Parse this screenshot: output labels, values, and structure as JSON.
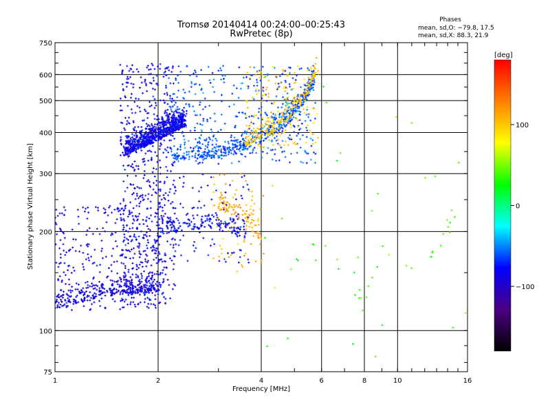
{
  "header": {
    "title_line1": "Tromsø 20140414 00:24:00–00:25:43",
    "title_line2": "RwPretec (8p)",
    "phases_title": "Phases",
    "phases_o": "mean, sd,O: −79.8, 17.5",
    "phases_x": "mean, sd,X:  88.3, 21.9"
  },
  "colorbar": {
    "unit_label": "[deg]",
    "range": [
      -180,
      180
    ],
    "tick_labels": [
      "100",
      "0",
      "−100"
    ],
    "tick_values": [
      100,
      0,
      -100
    ],
    "colors": [
      "#000000",
      "#4b0082",
      "#0000ff",
      "#00ffff",
      "#00ff00",
      "#ffff00",
      "#ff8000",
      "#ff0000"
    ]
  },
  "chart_data": {
    "type": "scatter",
    "title": "Tromsø 20140414 00:24:00–00:25:43",
    "subtitle": "RwPretec (8p)",
    "xlabel": "Frequency [MHz]",
    "ylabel": "Stationary phase Virtual Height [km]",
    "xscale": "log",
    "yscale": "log",
    "xlim": [
      1,
      16
    ],
    "ylim": [
      75,
      750
    ],
    "x_ticks": [
      1,
      2,
      4,
      6,
      8,
      10,
      16
    ],
    "x_tick_labels": [
      "1",
      "2",
      "4",
      "6",
      "8",
      "10",
      "16"
    ],
    "y_ticks": [
      75,
      100,
      200,
      300,
      400,
      500,
      600,
      750
    ],
    "y_tick_labels": [
      "75",
      "100",
      "200",
      "300",
      "400",
      "500",
      "600",
      "750"
    ],
    "x_gridlines": [
      2,
      4,
      6,
      8,
      10
    ],
    "y_gridlines": [
      100,
      200,
      300,
      400,
      500,
      600
    ],
    "color_variable": "phase [deg]",
    "series": [
      {
        "trace": [
          [
            1.0,
            115
          ],
          [
            1.2,
            122
          ],
          [
            1.4,
            127
          ],
          [
            1.6,
            129
          ],
          [
            1.8,
            130
          ],
          [
            2.0,
            131
          ]
        ],
        "x_range": [
          1.0,
          2.05
        ],
        "y_range": [
          115,
          240
        ],
        "phase_mean": -90,
        "density": 600
      },
      {
        "trace": [
          [
            1.6,
            340
          ],
          [
            1.8,
            360
          ],
          [
            2.0,
            380
          ],
          [
            2.2,
            400
          ],
          [
            2.4,
            420
          ]
        ],
        "x_range": [
          1.55,
          2.25
        ],
        "y_range": [
          120,
          650
        ],
        "phase_mean": -85,
        "density": 1400
      },
      {
        "trace": [
          [
            2.2,
            330
          ],
          [
            2.6,
            332
          ],
          [
            3.0,
            335
          ],
          [
            3.4,
            345
          ],
          [
            3.8,
            365
          ],
          [
            4.2,
            385
          ],
          [
            4.6,
            410
          ],
          [
            5.0,
            450
          ],
          [
            5.4,
            500
          ],
          [
            5.7,
            560
          ]
        ],
        "x_range": [
          2.1,
          5.8
        ],
        "y_range": [
          320,
          640
        ],
        "phase_mean": -60,
        "density": 900
      },
      {
        "trace": [
          [
            3.6,
            365
          ],
          [
            4.0,
            375
          ],
          [
            4.4,
            395
          ],
          [
            4.8,
            430
          ],
          [
            5.2,
            480
          ],
          [
            5.6,
            550
          ],
          [
            5.8,
            620
          ]
        ],
        "x_range": [
          3.6,
          5.9
        ],
        "y_range": [
          360,
          640
        ],
        "phase_mean": 100,
        "density": 320
      },
      {
        "trace": [
          [
            3.0,
            235
          ],
          [
            3.2,
            225
          ],
          [
            3.5,
            215
          ],
          [
            3.8,
            200
          ],
          [
            4.0,
            185
          ]
        ],
        "x_range": [
          2.9,
          4.1
        ],
        "y_range": [
          150,
          300
        ],
        "phase_mean": 110,
        "density": 160
      },
      {
        "trace": [
          [
            2.0,
            195
          ],
          [
            2.4,
            200
          ],
          [
            2.8,
            205
          ],
          [
            3.2,
            200
          ],
          [
            3.6,
            190
          ]
        ],
        "x_range": [
          2.0,
          3.7
        ],
        "y_range": [
          160,
          300
        ],
        "phase_mean": -80,
        "density": 250
      },
      {
        "trace": [
          [
            4.2,
            120
          ],
          [
            5.5,
            180
          ],
          [
            7.8,
            110
          ],
          [
            9.0,
            160
          ],
          [
            12.0,
            150
          ],
          [
            15.0,
            220
          ]
        ],
        "x_range": [
          4.0,
          15.8
        ],
        "y_range": [
          80,
          600
        ],
        "phase_mean": 40,
        "density": 60
      }
    ]
  }
}
